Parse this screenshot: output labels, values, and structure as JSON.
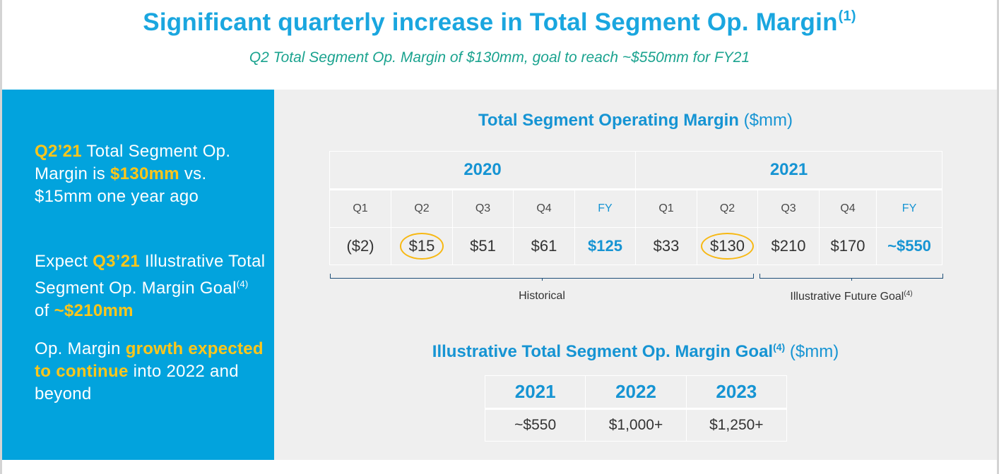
{
  "slide": {
    "title": "Significant quarterly increase in Total Segment Op. Margin",
    "title_footnote": "(1)",
    "subtitle": "Q2 Total Segment Op. Margin of $130mm, goal to reach ~$550mm for FY21"
  },
  "left_panel": {
    "p1": {
      "hl1": "Q2’21",
      "t1": " Total Segment Op. Margin is ",
      "hl2": "$130mm",
      "t2": " vs. $15mm one year ago"
    },
    "p2": {
      "t1": "Expect ",
      "hl1": "Q3’21",
      "t2": " Illustrative Total Segment Op. Margin Goal",
      "footnote": "(4)",
      "t3": " of ",
      "hl2": "~$210mm"
    },
    "p3": {
      "t1": "Op. Margin ",
      "hl1": "growth expected to continue",
      "t2": " into 2022 and beyond"
    }
  },
  "chart1": {
    "title_bold": "Total Segment Operating Margin",
    "title_unit": " ($mm)",
    "years": [
      "2020",
      "2021"
    ],
    "quarters": [
      "Q1",
      "Q2",
      "Q3",
      "Q4",
      "FY",
      "Q1",
      "Q2",
      "Q3",
      "Q4",
      "FY"
    ],
    "values": [
      "($2)",
      "$15",
      "$51",
      "$61",
      "$125",
      "$33",
      "$130",
      "$210",
      "$170",
      "~$550"
    ],
    "bracket_historical": "Historical",
    "bracket_future": "Illustrative Future Goal",
    "bracket_future_footnote": "(4)"
  },
  "chart2": {
    "title_bold": "Illustrative Total Segment Op. Margin Goal",
    "title_footnote": "(4)",
    "title_unit": " ($mm)",
    "years": [
      "2021",
      "2022",
      "2023"
    ],
    "values": [
      "~$550",
      "$1,000+",
      "$1,250+"
    ]
  },
  "colors": {
    "accent_blue": "#1aa6df",
    "panel_blue": "#02a3dd",
    "highlight_yellow": "#ffc61a",
    "subtitle_teal": "#1ba38f",
    "circle_gold": "#f7b813"
  }
}
